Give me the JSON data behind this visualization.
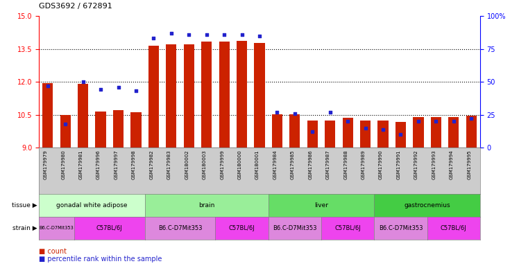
{
  "title": "GDS3692 / 672891",
  "samples": [
    "GSM179979",
    "GSM179980",
    "GSM179981",
    "GSM179996",
    "GSM179997",
    "GSM179998",
    "GSM179982",
    "GSM179983",
    "GSM180002",
    "GSM180003",
    "GSM179999",
    "GSM180000",
    "GSM180001",
    "GSM179984",
    "GSM179985",
    "GSM179986",
    "GSM179987",
    "GSM179988",
    "GSM179989",
    "GSM179990",
    "GSM179991",
    "GSM179992",
    "GSM179993",
    "GSM179994",
    "GSM179995"
  ],
  "count_values": [
    11.95,
    10.5,
    11.9,
    10.63,
    10.72,
    10.6,
    13.63,
    13.72,
    13.7,
    13.82,
    13.82,
    13.85,
    13.78,
    10.52,
    10.51,
    10.25,
    10.22,
    10.36,
    10.24,
    10.24,
    10.18,
    10.38,
    10.38,
    10.38,
    10.47
  ],
  "percentile_values": [
    47,
    18,
    50,
    44,
    46,
    43,
    83,
    87,
    86,
    86,
    86,
    86,
    85,
    27,
    26,
    12,
    27,
    20,
    15,
    14,
    10,
    20,
    20,
    20,
    22
  ],
  "tissue_groups": [
    {
      "label": "gonadal white adipose",
      "start": 0,
      "end": 5
    },
    {
      "label": "brain",
      "start": 6,
      "end": 12
    },
    {
      "label": "liver",
      "start": 13,
      "end": 18
    },
    {
      "label": "gastrocnemius",
      "start": 19,
      "end": 24
    }
  ],
  "tissue_colors": [
    "#ccffcc",
    "#99ee99",
    "#66dd66",
    "#44cc44"
  ],
  "strain_groups": [
    {
      "label": "B6.C-D7Mit353",
      "start": 0,
      "end": 1
    },
    {
      "label": "C57BL/6J",
      "start": 2,
      "end": 5
    },
    {
      "label": "B6.C-D7Mit353",
      "start": 6,
      "end": 9
    },
    {
      "label": "C57BL/6J",
      "start": 10,
      "end": 12
    },
    {
      "label": "B6.C-D7Mit353",
      "start": 13,
      "end": 15
    },
    {
      "label": "C57BL/6J",
      "start": 16,
      "end": 18
    },
    {
      "label": "B6.C-D7Mit353",
      "start": 19,
      "end": 21
    },
    {
      "label": "C57BL/6J",
      "start": 22,
      "end": 24
    }
  ],
  "strain_colors": {
    "B6.C-D7Mit353": "#dd88dd",
    "C57BL/6J": "#ee44ee"
  },
  "ylim_left": [
    9,
    15
  ],
  "ylim_right": [
    0,
    100
  ],
  "yticks_left": [
    9,
    10.5,
    12,
    13.5,
    15
  ],
  "yticks_right": [
    0,
    25,
    50,
    75,
    100
  ],
  "bar_color": "#cc2200",
  "dot_color": "#2222cc",
  "bar_width": 0.6,
  "chart_bg": "#ffffff",
  "xtick_bg": "#cccccc"
}
